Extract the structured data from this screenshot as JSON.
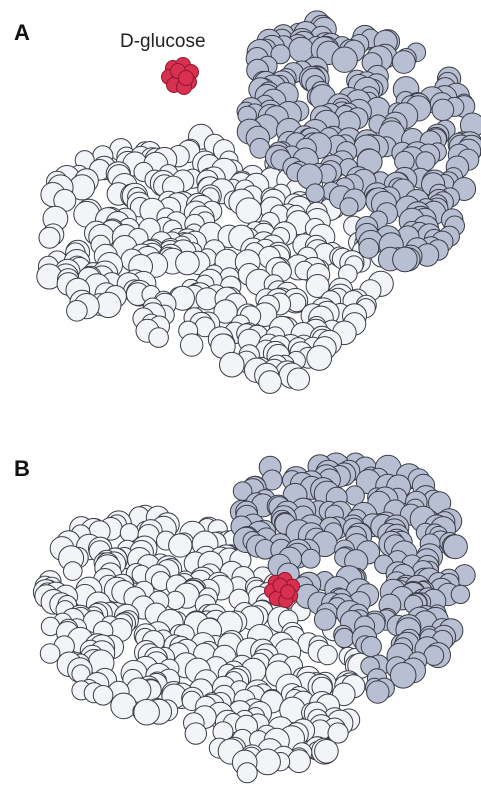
{
  "panels": [
    {
      "label": "A",
      "ligand_label": "D-glucose"
    },
    {
      "label": "B",
      "ligand_label": ""
    }
  ],
  "colors": {
    "large_domain": "#f2f4f7",
    "small_domain": "#b9bfd3",
    "ligand": "#d8304e",
    "outline": "#3a3d47"
  }
}
